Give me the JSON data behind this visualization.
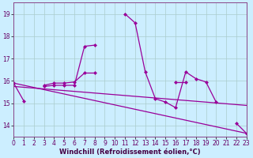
{
  "xlabel": "Windchill (Refroidissement éolien,°C)",
  "bg_color": "#cceeff",
  "line_color": "#990099",
  "grid_color": "#aacccc",
  "x_values": [
    0,
    1,
    2,
    3,
    4,
    5,
    6,
    7,
    8,
    9,
    10,
    11,
    12,
    13,
    14,
    15,
    16,
    17,
    18,
    19,
    20,
    21,
    22,
    23
  ],
  "series_main": [
    15.9,
    15.1,
    null,
    15.8,
    15.9,
    15.9,
    15.95,
    16.35,
    16.35,
    null,
    null,
    19.0,
    18.6,
    16.4,
    15.2,
    15.05,
    14.8,
    16.4,
    16.1,
    15.95,
    15.05,
    null,
    14.1,
    13.65
  ],
  "series_up": [
    15.9,
    null,
    null,
    15.75,
    15.8,
    15.8,
    15.8,
    17.55,
    17.6,
    null,
    null,
    null,
    null,
    null,
    null,
    null,
    null,
    null,
    null,
    null,
    null,
    null,
    null,
    null
  ],
  "series_horiz": [
    15.9,
    null,
    null,
    null,
    null,
    null,
    null,
    null,
    null,
    null,
    null,
    null,
    null,
    null,
    null,
    null,
    15.95,
    15.95,
    null,
    null,
    null,
    null,
    null,
    null
  ],
  "trend_x": [
    0,
    23
  ],
  "trend_y": [
    15.9,
    13.65
  ],
  "trend2_x": [
    0,
    23
  ],
  "trend2_y": [
    15.75,
    14.9
  ],
  "ylim": [
    13.5,
    19.5
  ],
  "xlim": [
    0,
    23
  ],
  "yticks": [
    14,
    15,
    16,
    17,
    18,
    19
  ],
  "xticks": [
    0,
    1,
    2,
    3,
    4,
    5,
    6,
    7,
    8,
    9,
    10,
    11,
    12,
    13,
    14,
    15,
    16,
    17,
    18,
    19,
    20,
    21,
    22,
    23
  ]
}
